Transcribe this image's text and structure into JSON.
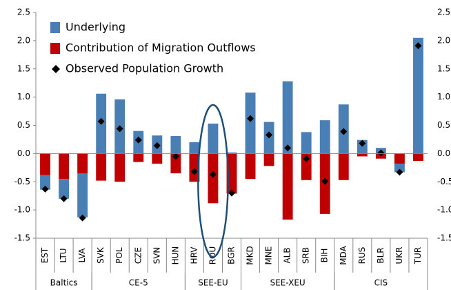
{
  "chart_data": {
    "type": "bar",
    "categories": [
      "EST",
      "LTU",
      "LVA",
      "SVK",
      "POL",
      "CZE",
      "SVN",
      "HUN",
      "HRV",
      "ROU",
      "BGR",
      "MKD",
      "MNE",
      "ALB",
      "SRB",
      "BIH",
      "MDA",
      "RUS",
      "BLR",
      "UKR",
      "TUR"
    ],
    "groups": [
      {
        "name": "Baltics",
        "size": 3
      },
      {
        "name": "CE-5",
        "size": 5
      },
      {
        "name": "SEE-EU",
        "size": 3
      },
      {
        "name": "SEE-XEU",
        "size": 5
      },
      {
        "name": "CIS",
        "size": 5
      }
    ],
    "series": [
      {
        "name": "Underlying",
        "color": "#4a7fb5",
        "values": [
          -0.26,
          -0.35,
          -0.78,
          1.06,
          0.96,
          0.4,
          0.32,
          0.31,
          0.2,
          0.53,
          0.02,
          1.08,
          0.56,
          1.28,
          0.38,
          0.59,
          0.87,
          0.24,
          0.1,
          -0.15,
          2.05
        ]
      },
      {
        "name": "Contribution of Migration Outflows",
        "color": "#c00000",
        "values": [
          -0.38,
          -0.45,
          -0.35,
          -0.48,
          -0.5,
          -0.15,
          -0.18,
          -0.35,
          -0.5,
          -0.88,
          -0.71,
          -0.45,
          -0.22,
          -1.17,
          -0.47,
          -1.07,
          -0.47,
          -0.05,
          -0.09,
          -0.18,
          -0.13
        ]
      },
      {
        "name": "Observed Population Growth",
        "color": "#000000",
        "marker": "diamond",
        "values": [
          -0.63,
          -0.8,
          -1.14,
          0.57,
          0.44,
          0.24,
          0.14,
          -0.05,
          -0.32,
          -0.37,
          -0.7,
          0.62,
          0.33,
          0.1,
          -0.09,
          -0.49,
          0.39,
          0.18,
          0.01,
          -0.33,
          1.91
        ]
      }
    ],
    "ylim": [
      -1.5,
      2.5
    ],
    "yticks": [
      {
        "value": -1.5,
        "label": "-1.5"
      },
      {
        "value": -1,
        "label": "-1.0"
      },
      {
        "value": -0.5,
        "label": "-0.5"
      },
      {
        "value": 0,
        "label": "0.0"
      },
      {
        "value": 0.5,
        "label": "0.5"
      },
      {
        "value": 1,
        "label": "1.0"
      },
      {
        "value": 1.5,
        "label": "1.5"
      },
      {
        "value": 2,
        "label": "2.0"
      },
      {
        "value": 2.5,
        "label": "2.5"
      }
    ],
    "grid": false,
    "legend": "top-left"
  }
}
